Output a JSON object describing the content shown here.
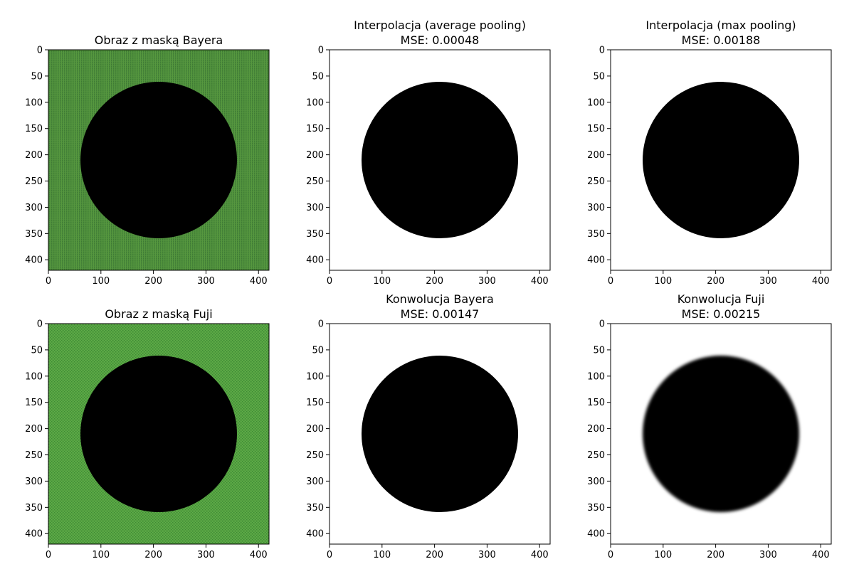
{
  "chart_data": [
    {
      "type": "image",
      "title_lines": [
        "Obraz z maską Bayera"
      ],
      "background": "bayer-mosaic",
      "background_color": "#4b8c3c",
      "circle": {
        "cx": 210,
        "cy": 210,
        "r": 149,
        "color": "#000000",
        "edge": "sharp"
      },
      "xlim": [
        0,
        420
      ],
      "ylim": [
        420,
        0
      ],
      "xticks": [
        0,
        100,
        200,
        300,
        400
      ],
      "yticks": [
        0,
        50,
        100,
        150,
        200,
        250,
        300,
        350,
        400
      ]
    },
    {
      "type": "image",
      "title_lines": [
        "Interpolacja (average pooling)",
        "MSE: 0.00048"
      ],
      "background": "solid",
      "background_color": "#ffffff",
      "circle": {
        "cx": 210,
        "cy": 210,
        "r": 149,
        "color": "#000000",
        "edge": "sharp"
      },
      "xlim": [
        0,
        420
      ],
      "ylim": [
        420,
        0
      ],
      "xticks": [
        0,
        100,
        200,
        300,
        400
      ],
      "yticks": [
        0,
        50,
        100,
        150,
        200,
        250,
        300,
        350,
        400
      ]
    },
    {
      "type": "image",
      "title_lines": [
        "Interpolacja (max pooling)",
        "MSE: 0.00188"
      ],
      "background": "solid",
      "background_color": "#ffffff",
      "circle": {
        "cx": 210,
        "cy": 210,
        "r": 149,
        "color": "#000000",
        "edge": "sharp"
      },
      "xlim": [
        0,
        420
      ],
      "ylim": [
        420,
        0
      ],
      "xticks": [
        0,
        100,
        200,
        300,
        400
      ],
      "yticks": [
        0,
        50,
        100,
        150,
        200,
        250,
        300,
        350,
        400
      ]
    },
    {
      "type": "image",
      "title_lines": [
        "Obraz z maską Fuji"
      ],
      "background": "fuji-mosaic",
      "background_color": "#55a141",
      "circle": {
        "cx": 210,
        "cy": 210,
        "r": 149,
        "color": "#000000",
        "edge": "sharp"
      },
      "xlim": [
        0,
        420
      ],
      "ylim": [
        420,
        0
      ],
      "xticks": [
        0,
        100,
        200,
        300,
        400
      ],
      "yticks": [
        0,
        50,
        100,
        150,
        200,
        250,
        300,
        350,
        400
      ]
    },
    {
      "type": "image",
      "title_lines": [
        "Konwolucja Bayera",
        "MSE: 0.00147"
      ],
      "background": "solid",
      "background_color": "#ffffff",
      "circle": {
        "cx": 210,
        "cy": 210,
        "r": 149,
        "color": "#000000",
        "edge": "sharp"
      },
      "xlim": [
        0,
        420
      ],
      "ylim": [
        420,
        0
      ],
      "xticks": [
        0,
        100,
        200,
        300,
        400
      ],
      "yticks": [
        0,
        50,
        100,
        150,
        200,
        250,
        300,
        350,
        400
      ]
    },
    {
      "type": "image",
      "title_lines": [
        "Konwolucja Fuji",
        "MSE: 0.00215"
      ],
      "background": "solid",
      "background_color": "#ffffff",
      "circle": {
        "cx": 210,
        "cy": 210,
        "r": 149,
        "color": "#000000",
        "edge": "blurred"
      },
      "xlim": [
        0,
        420
      ],
      "ylim": [
        420,
        0
      ],
      "xticks": [
        0,
        100,
        200,
        300,
        400
      ],
      "yticks": [
        0,
        50,
        100,
        150,
        200,
        250,
        300,
        350,
        400
      ]
    }
  ]
}
